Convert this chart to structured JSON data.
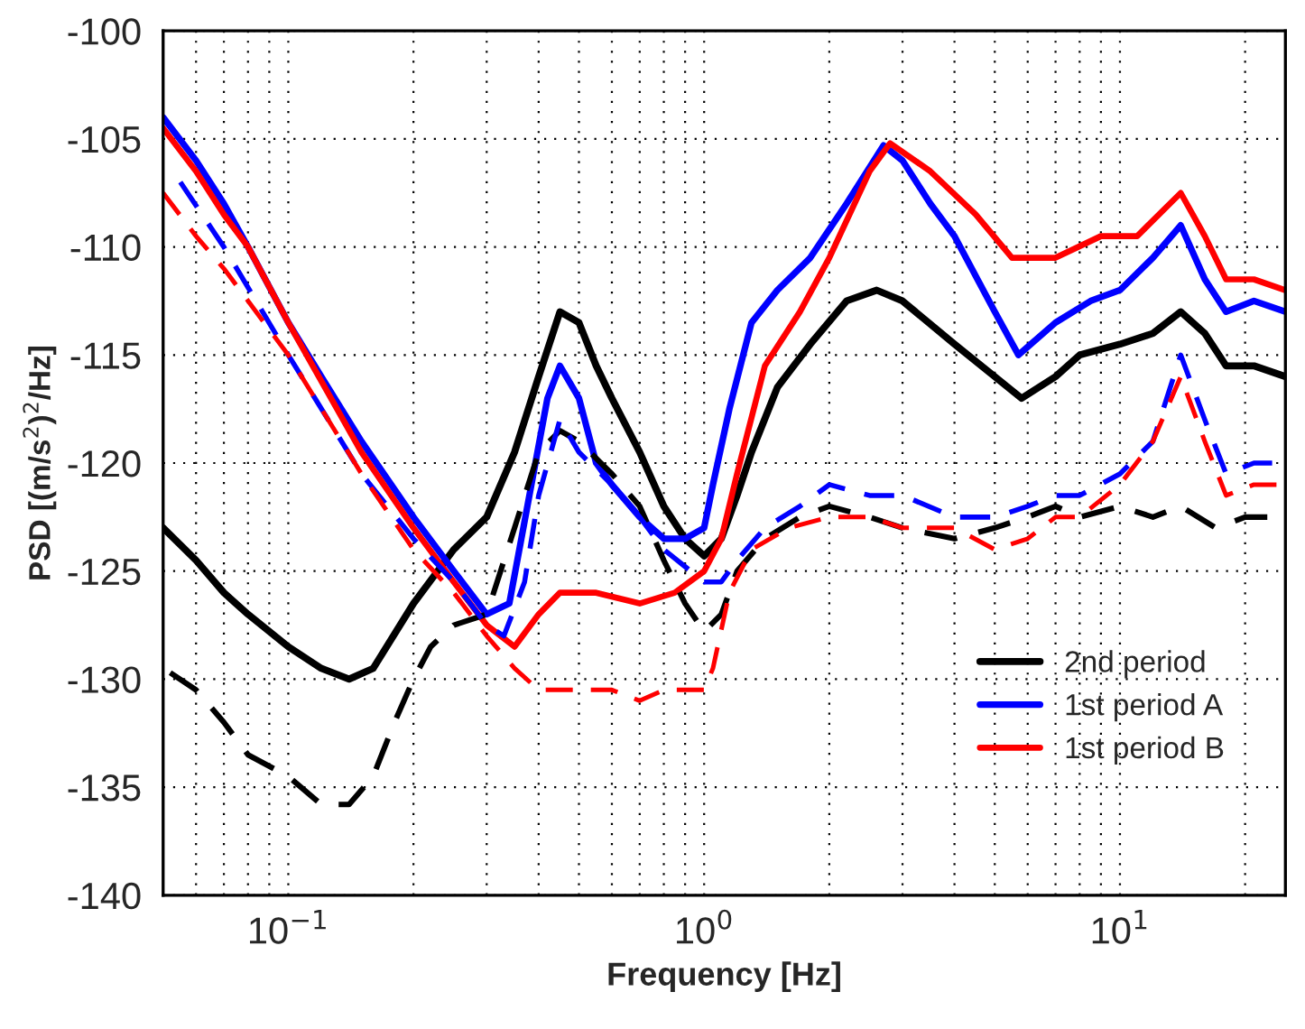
{
  "chart_data": {
    "type": "line",
    "xlabel": "Frequency [Hz]",
    "ylabel": "PSD [(m/s$^{2}$)$^{2}$/Hz]",
    "log": "x",
    "grid": true,
    "legend": "bottom right",
    "xlim": [
      0.05,
      25
    ],
    "ylim": [
      -140,
      -100
    ],
    "xticks": [
      {
        "value": 0.1,
        "label": "10$^{−1}$"
      },
      {
        "value": 1,
        "label": "10$^{0}$"
      },
      {
        "value": 10,
        "label": "10$^{1}$"
      }
    ],
    "yticks": [
      -140,
      -135,
      -130,
      -125,
      -120,
      -115,
      -110,
      -105,
      -100
    ],
    "series": [
      {
        "name": "2nd period",
        "color": "#000000",
        "line_style": "solid",
        "x": [
          0.05,
          0.06,
          0.07,
          0.08,
          0.1,
          0.12,
          0.14,
          0.16,
          0.2,
          0.25,
          0.3,
          0.35,
          0.4,
          0.45,
          0.5,
          0.55,
          0.6,
          0.7,
          0.8,
          0.9,
          1.0,
          1.1,
          1.2,
          1.3,
          1.5,
          1.8,
          2.2,
          2.6,
          3,
          4,
          5,
          5.8,
          7,
          8,
          10,
          12,
          14,
          16,
          18,
          21,
          25
        ],
        "values": [
          -123,
          -124.5,
          -126,
          -127,
          -128.5,
          -129.5,
          -130,
          -129.5,
          -126.5,
          -124,
          -122.5,
          -119.5,
          -116,
          -113,
          -113.5,
          -115.5,
          -117,
          -119.5,
          -122,
          -123.5,
          -124.3,
          -123.5,
          -121.5,
          -119.5,
          -116.5,
          -114.5,
          -112.5,
          -112,
          -112.5,
          -114.5,
          -116,
          -117,
          -116,
          -115,
          -114.5,
          -114,
          -113,
          -114,
          -115.5,
          -115.5,
          -116
        ]
      },
      {
        "name": "1st period A",
        "color": "#0000ff",
        "line_style": "solid",
        "x": [
          0.05,
          0.06,
          0.07,
          0.08,
          0.1,
          0.12,
          0.15,
          0.2,
          0.25,
          0.3,
          0.34,
          0.38,
          0.42,
          0.45,
          0.5,
          0.55,
          0.6,
          0.7,
          0.8,
          0.9,
          1.0,
          1.05,
          1.15,
          1.3,
          1.5,
          1.8,
          2.2,
          2.7,
          3,
          3.5,
          4,
          5,
          5.7,
          7,
          8.5,
          10,
          12,
          14,
          16,
          18,
          21,
          25
        ],
        "values": [
          -104,
          -106,
          -108,
          -110,
          -113.5,
          -116,
          -119,
          -122.5,
          -125,
          -127,
          -126.5,
          -121.5,
          -117,
          -115.5,
          -117,
          -120,
          -121,
          -122.5,
          -123.5,
          -123.5,
          -123,
          -121,
          -117.5,
          -113.5,
          -112,
          -110.5,
          -108,
          -105.3,
          -106,
          -108,
          -109.5,
          -113,
          -115,
          -113.5,
          -112.5,
          -112,
          -110.5,
          -109,
          -111.5,
          -113,
          -112.5,
          -113
        ]
      },
      {
        "name": "1st period B",
        "color": "#ff0000",
        "line_style": "solid",
        "x": [
          0.05,
          0.06,
          0.07,
          0.08,
          0.1,
          0.15,
          0.2,
          0.25,
          0.3,
          0.35,
          0.4,
          0.45,
          0.55,
          0.7,
          0.85,
          1.0,
          1.1,
          1.2,
          1.4,
          1.7,
          2.0,
          2.5,
          2.8,
          3.5,
          4.5,
          5.5,
          7,
          9,
          11,
          14,
          16,
          18,
          21,
          25
        ],
        "values": [
          -104.5,
          -106.5,
          -108.5,
          -110,
          -113.5,
          -119.5,
          -123,
          -125.5,
          -127.5,
          -128.5,
          -127,
          -126,
          -126,
          -126.5,
          -126,
          -125,
          -123.5,
          -120.5,
          -115.5,
          -113,
          -110.5,
          -106.5,
          -105.2,
          -106.5,
          -108.5,
          -110.5,
          -110.5,
          -109.5,
          -109.5,
          -107.5,
          -109.5,
          -111.5,
          -111.5,
          -112
        ]
      },
      {
        "color": "#000000",
        "line_style": "dashed",
        "x": [
          0.052,
          0.06,
          0.07,
          0.08,
          0.1,
          0.12,
          0.14,
          0.16,
          0.18,
          0.2,
          0.22,
          0.25,
          0.3,
          0.35,
          0.4,
          0.45,
          0.5,
          0.6,
          0.7,
          0.8,
          0.9,
          1.0,
          1.1,
          1.2,
          1.4,
          1.7,
          2.0,
          2.5,
          3,
          4,
          5,
          6,
          7,
          8,
          10,
          12,
          14,
          17,
          20,
          25
        ],
        "values": [
          -129.7,
          -130.5,
          -132,
          -133.5,
          -134.5,
          -135.8,
          -135.8,
          -134.5,
          -132,
          -130,
          -128.5,
          -127.5,
          -127,
          -123,
          -119.5,
          -118.5,
          -119,
          -120.5,
          -122,
          -124.5,
          -126.5,
          -127.8,
          -127,
          -125,
          -123.5,
          -122.5,
          -122,
          -122.5,
          -123,
          -123.5,
          -123,
          -122.5,
          -122,
          -122.5,
          -122,
          -122.5,
          -122,
          -123,
          -122.5,
          -122.5
        ]
      },
      {
        "color": "#0000ff",
        "line_style": "dashed",
        "x": [
          0.055,
          0.07,
          0.1,
          0.15,
          0.2,
          0.25,
          0.3,
          0.33,
          0.37,
          0.4,
          0.45,
          0.5,
          0.6,
          0.7,
          0.8,
          1.0,
          1.1,
          1.2,
          1.4,
          1.7,
          2.0,
          2.5,
          3,
          4,
          5,
          6,
          7,
          8,
          10,
          12,
          14,
          16,
          18,
          21,
          25
        ],
        "values": [
          -107,
          -110,
          -115,
          -120.5,
          -123.5,
          -125.5,
          -127.5,
          -128,
          -125.5,
          -121.5,
          -118,
          -119.5,
          -121,
          -122.5,
          -124,
          -125.5,
          -125.5,
          -124.5,
          -123,
          -122,
          -121,
          -121.5,
          -121.5,
          -122.5,
          -122.5,
          -122,
          -121.5,
          -121.5,
          -120.5,
          -119,
          -115,
          -118,
          -120.5,
          -120,
          -120
        ]
      },
      {
        "color": "#ff0000",
        "line_style": "dashed",
        "x": [
          0.05,
          0.06,
          0.07,
          0.1,
          0.15,
          0.2,
          0.25,
          0.3,
          0.35,
          0.4,
          0.5,
          0.6,
          0.7,
          0.8,
          0.9,
          1.0,
          1.05,
          1.15,
          1.3,
          1.6,
          2.0,
          2.5,
          3,
          4,
          5,
          6,
          7,
          8,
          10,
          12,
          14,
          16,
          18,
          21,
          25
        ],
        "values": [
          -107.5,
          -109.5,
          -111,
          -115,
          -120.5,
          -124,
          -126,
          -128,
          -129.5,
          -130.5,
          -130.5,
          -130.5,
          -131,
          -130.5,
          -130.5,
          -130.5,
          -129.5,
          -126,
          -124,
          -123,
          -122.5,
          -122.5,
          -123,
          -123,
          -124,
          -123.5,
          -122.5,
          -122.5,
          -121,
          -119,
          -116,
          -119,
          -121.5,
          -121,
          -121
        ]
      }
    ]
  }
}
